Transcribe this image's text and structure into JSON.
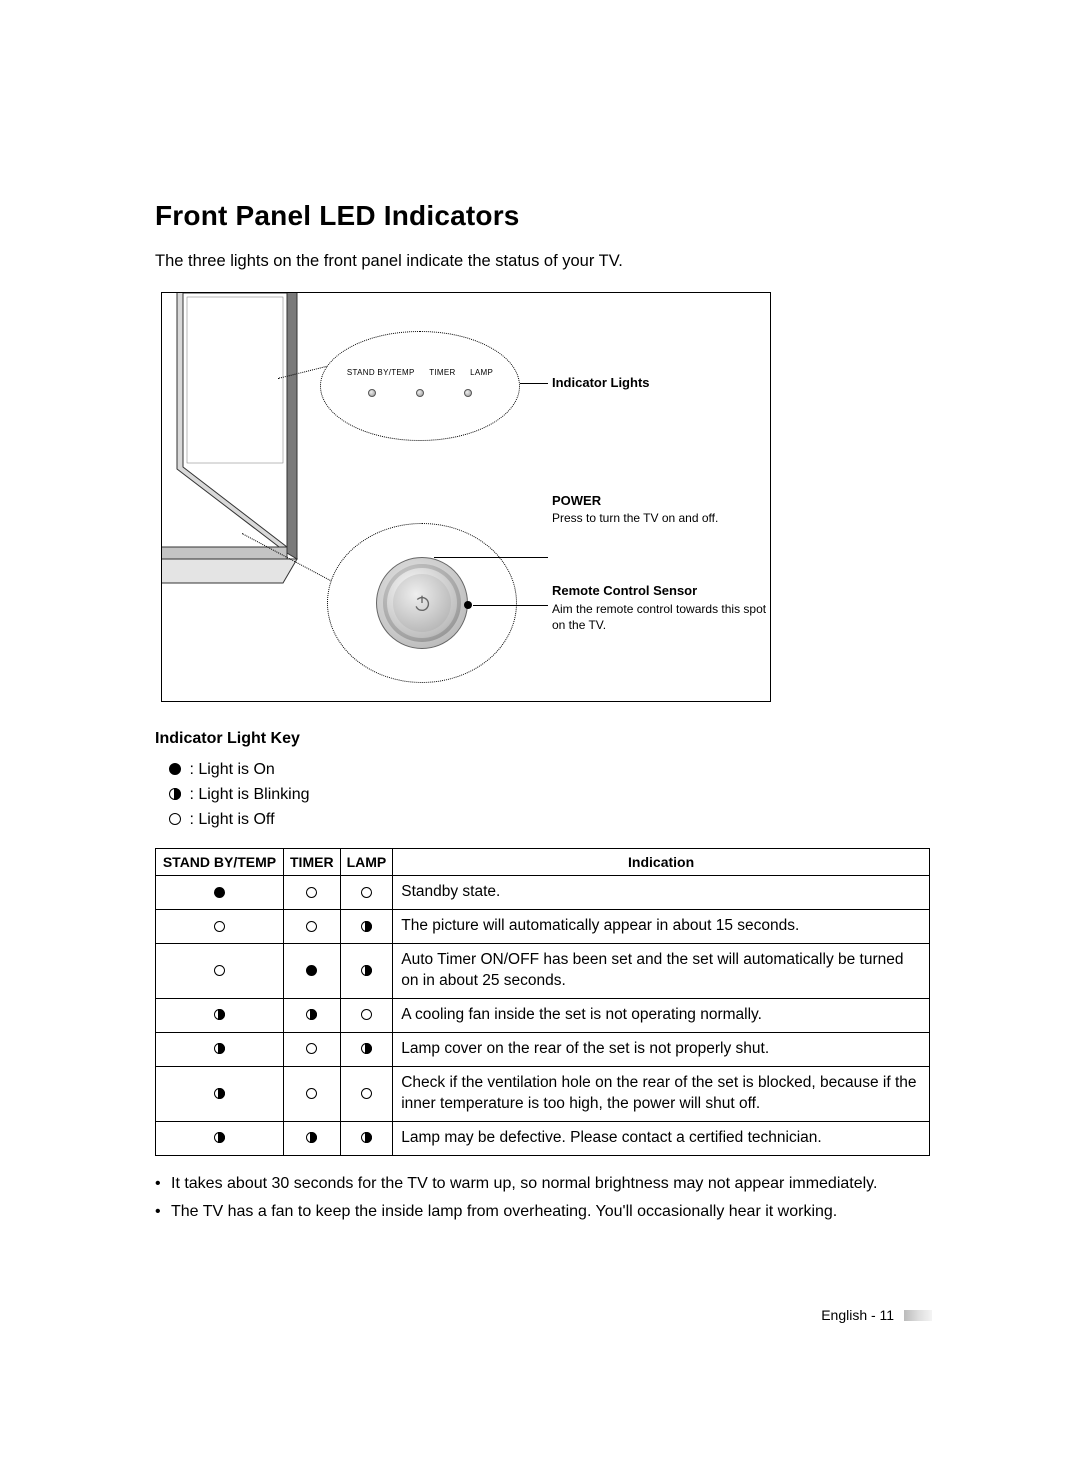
{
  "title": "Front Panel LED Indicators",
  "intro": "The three lights on the front panel indicate the status of your TV.",
  "figure": {
    "indicator_lights_label": "Indicator Lights",
    "led_labels": {
      "a": "STAND BY/TEMP",
      "b": "TIMER",
      "c": "LAMP"
    },
    "power": {
      "heading": "POWER",
      "sub": "Press to turn the TV on and off."
    },
    "sensor": {
      "heading": "Remote Control Sensor",
      "sub": "Aim the remote control towards this spot on the TV."
    }
  },
  "key": {
    "heading": "Indicator Light Key",
    "on": " : Light is On",
    "blink": " : Light is Blinking",
    "off": " : Light is Off"
  },
  "table": {
    "headers": {
      "a": "STAND BY/TEMP",
      "b": "TIMER",
      "c": "LAMP",
      "d": "Indication"
    },
    "rows": [
      {
        "a": "on",
        "b": "off",
        "c": "off",
        "d": "Standby state."
      },
      {
        "a": "off",
        "b": "off",
        "c": "blink",
        "d": "The picture will automatically appear in about 15 seconds."
      },
      {
        "a": "off",
        "b": "on",
        "c": "blink",
        "d": "Auto Timer ON/OFF has been set and the set will automatically be turned on in about 25 seconds."
      },
      {
        "a": "blink",
        "b": "blink",
        "c": "off",
        "d": "A cooling fan inside the set is not operating normally."
      },
      {
        "a": "blink",
        "b": "off",
        "c": "blink",
        "d": "Lamp cover on the rear of the set is not properly shut."
      },
      {
        "a": "blink",
        "b": "off",
        "c": "off",
        "d": "Check if the ventilation hole on the rear of the set is blocked, because if the inner temperature is too high, the power will shut off."
      },
      {
        "a": "blink",
        "b": "blink",
        "c": "blink",
        "d": "Lamp may be defective. Please contact a certified technician."
      }
    ]
  },
  "notes": {
    "n1": "It takes about 30 seconds for the TV to warm up, so normal brightness may not appear immediately.",
    "n2": "The TV has a fan to keep the inside lamp from overheating. You'll occasionally hear it working."
  },
  "footer": "English - 11"
}
